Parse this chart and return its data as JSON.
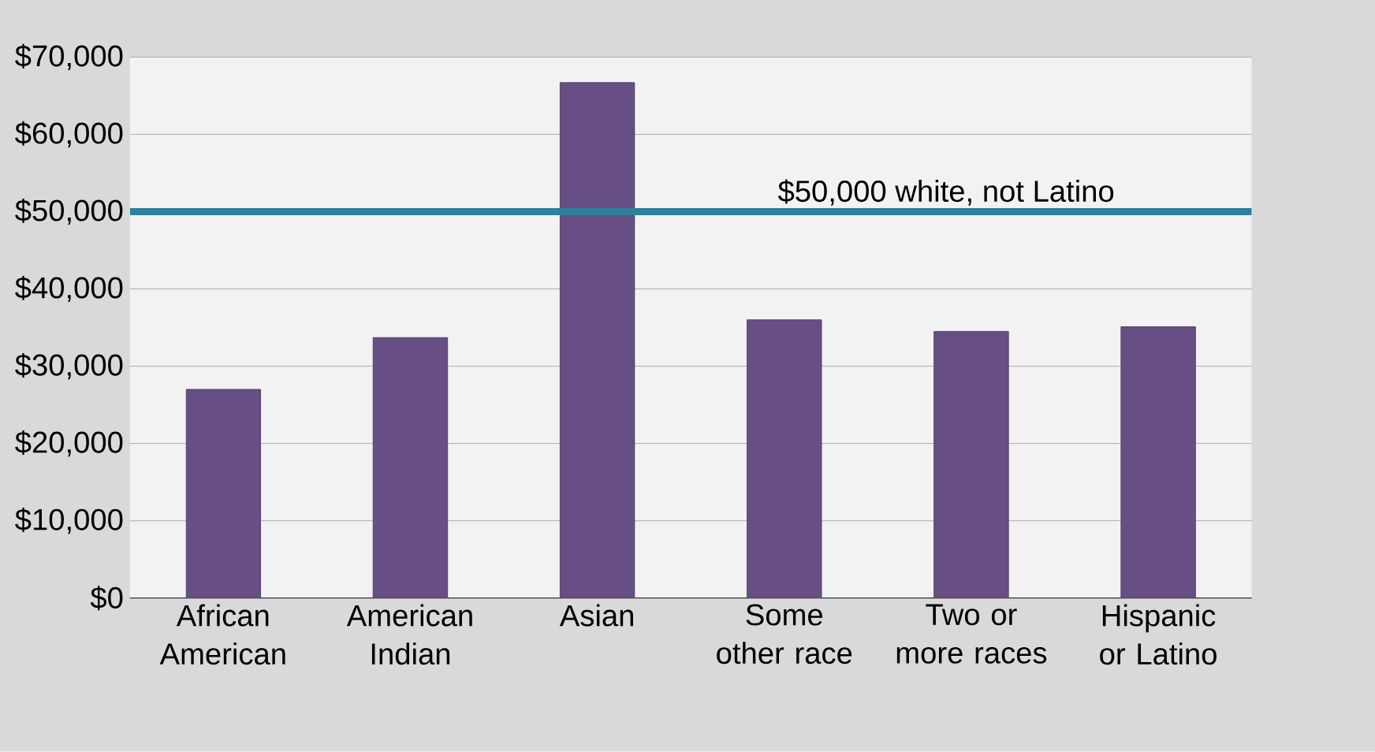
{
  "chart_data": {
    "type": "bar",
    "categories": [
      "African American",
      "American Indian",
      "Asian",
      "Some other race",
      "Two or more races",
      "Hispanic or Latino"
    ],
    "values": [
      27000,
      33700,
      66700,
      36000,
      34500,
      35100
    ],
    "color": "#674f86",
    "ylim": [
      0,
      70000
    ],
    "yticks": [
      {
        "value": 0,
        "label": "$0"
      },
      {
        "value": 10000,
        "label": "$10,000"
      },
      {
        "value": 20000,
        "label": "$20,000"
      },
      {
        "value": 30000,
        "label": "$30,000"
      },
      {
        "value": 40000,
        "label": "$40,000"
      },
      {
        "value": 50000,
        "label": "$50,000"
      },
      {
        "value": 60000,
        "label": "$60,000"
      },
      {
        "value": 70000,
        "label": "$70,000"
      }
    ],
    "grid": "y",
    "ref_lines": [
      {
        "axis": "y",
        "value": 50000,
        "label": "$50,000 white, not Latino",
        "color": "#2e8199"
      }
    ]
  }
}
